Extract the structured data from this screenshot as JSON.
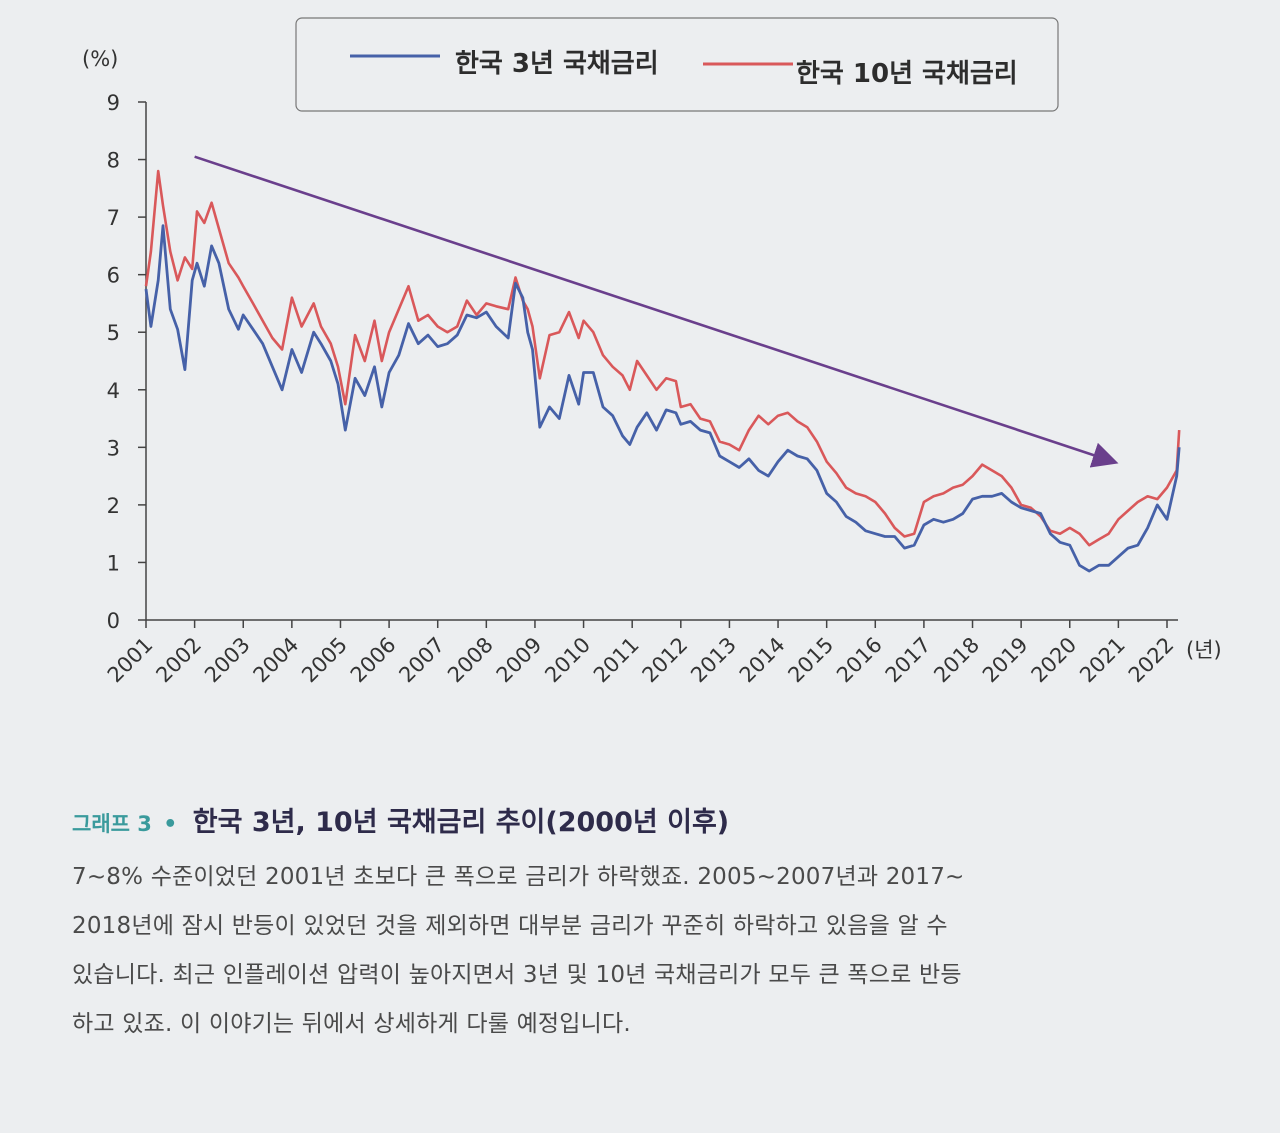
{
  "chart_data": {
    "type": "line",
    "y_unit_label": "(%)",
    "x_unit_label": "(년)",
    "ylim": [
      0,
      9
    ],
    "yticks": [
      0,
      1,
      2,
      3,
      4,
      5,
      6,
      7,
      8,
      9
    ],
    "xlim": [
      2001,
      2022.25
    ],
    "xticks": [
      2001,
      2002,
      2003,
      2004,
      2005,
      2006,
      2007,
      2008,
      2009,
      2010,
      2011,
      2012,
      2013,
      2014,
      2015,
      2016,
      2017,
      2018,
      2019,
      2020,
      2021,
      2022
    ],
    "legend": [
      "한국 3년 국채금리",
      "한국 10년 국채금리"
    ],
    "legend_position": "top",
    "colors": {
      "series_3y": "#4661a8",
      "series_10y": "#d9585a",
      "trend_arrow": "#6a3f8c"
    },
    "trend_arrow": {
      "from": [
        2002,
        8.05
      ],
      "to": [
        2020.9,
        2.75
      ]
    },
    "series": [
      {
        "name": "한국 3년 국채금리",
        "x": [
          2001.0,
          2001.1,
          2001.25,
          2001.35,
          2001.5,
          2001.65,
          2001.8,
          2001.95,
          2002.05,
          2002.2,
          2002.35,
          2002.5,
          2002.7,
          2002.9,
          2003.0,
          2003.2,
          2003.4,
          2003.6,
          2003.8,
          2004.0,
          2004.2,
          2004.45,
          2004.6,
          2004.8,
          2004.95,
          2005.1,
          2005.3,
          2005.5,
          2005.7,
          2005.85,
          2006.0,
          2006.2,
          2006.4,
          2006.6,
          2006.8,
          2007.0,
          2007.2,
          2007.4,
          2007.6,
          2007.8,
          2008.0,
          2008.2,
          2008.45,
          2008.6,
          2008.75,
          2008.85,
          2008.95,
          2009.1,
          2009.3,
          2009.5,
          2009.7,
          2009.9,
          2010.0,
          2010.2,
          2010.4,
          2010.6,
          2010.8,
          2010.95,
          2011.1,
          2011.3,
          2011.5,
          2011.7,
          2011.9,
          2012.0,
          2012.2,
          2012.4,
          2012.6,
          2012.8,
          2013.0,
          2013.2,
          2013.4,
          2013.6,
          2013.8,
          2014.0,
          2014.2,
          2014.4,
          2014.6,
          2014.8,
          2015.0,
          2015.2,
          2015.4,
          2015.6,
          2015.8,
          2016.0,
          2016.2,
          2016.4,
          2016.6,
          2016.8,
          2017.0,
          2017.2,
          2017.4,
          2017.6,
          2017.8,
          2018.0,
          2018.2,
          2018.4,
          2018.6,
          2018.8,
          2019.0,
          2019.2,
          2019.4,
          2019.6,
          2019.8,
          2020.0,
          2020.2,
          2020.4,
          2020.6,
          2020.8,
          2021.0,
          2021.2,
          2021.4,
          2021.6,
          2021.8,
          2022.0,
          2022.2,
          2022.25
        ],
        "y": [
          5.75,
          5.1,
          5.9,
          6.85,
          5.4,
          5.05,
          4.35,
          5.9,
          6.2,
          5.8,
          6.5,
          6.2,
          5.4,
          5.05,
          5.3,
          5.05,
          4.8,
          4.4,
          4.0,
          4.7,
          4.3,
          5.0,
          4.8,
          4.5,
          4.1,
          3.3,
          4.2,
          3.9,
          4.4,
          3.7,
          4.3,
          4.6,
          5.15,
          4.8,
          4.95,
          4.75,
          4.8,
          4.95,
          5.3,
          5.25,
          5.35,
          5.1,
          4.9,
          5.85,
          5.6,
          5.0,
          4.7,
          3.35,
          3.7,
          3.5,
          4.25,
          3.75,
          4.3,
          4.3,
          3.7,
          3.55,
          3.2,
          3.05,
          3.35,
          3.6,
          3.3,
          3.65,
          3.6,
          3.4,
          3.45,
          3.3,
          3.25,
          2.85,
          2.75,
          2.65,
          2.8,
          2.6,
          2.5,
          2.75,
          2.95,
          2.85,
          2.8,
          2.6,
          2.2,
          2.05,
          1.8,
          1.7,
          1.55,
          1.5,
          1.45,
          1.45,
          1.25,
          1.3,
          1.65,
          1.75,
          1.7,
          1.75,
          1.85,
          2.1,
          2.15,
          2.15,
          2.2,
          2.05,
          1.95,
          1.9,
          1.85,
          1.5,
          1.35,
          1.3,
          0.95,
          0.85,
          0.95,
          0.95,
          1.1,
          1.25,
          1.3,
          1.6,
          2.0,
          1.75,
          2.5,
          3.0
        ]
      },
      {
        "name": "한국 10년 국채금리",
        "x": [
          2001.0,
          2001.1,
          2001.25,
          2001.35,
          2001.5,
          2001.65,
          2001.8,
          2001.95,
          2002.05,
          2002.2,
          2002.35,
          2002.5,
          2002.7,
          2002.9,
          2003.0,
          2003.2,
          2003.4,
          2003.6,
          2003.8,
          2004.0,
          2004.2,
          2004.45,
          2004.6,
          2004.8,
          2004.95,
          2005.1,
          2005.3,
          2005.5,
          2005.7,
          2005.85,
          2006.0,
          2006.2,
          2006.4,
          2006.6,
          2006.8,
          2007.0,
          2007.2,
          2007.4,
          2007.6,
          2007.8,
          2008.0,
          2008.2,
          2008.45,
          2008.6,
          2008.75,
          2008.85,
          2008.95,
          2009.1,
          2009.3,
          2009.5,
          2009.7,
          2009.9,
          2010.0,
          2010.2,
          2010.4,
          2010.6,
          2010.8,
          2010.95,
          2011.1,
          2011.3,
          2011.5,
          2011.7,
          2011.9,
          2012.0,
          2012.2,
          2012.4,
          2012.6,
          2012.8,
          2013.0,
          2013.2,
          2013.4,
          2013.6,
          2013.8,
          2014.0,
          2014.2,
          2014.4,
          2014.6,
          2014.8,
          2015.0,
          2015.2,
          2015.4,
          2015.6,
          2015.8,
          2016.0,
          2016.2,
          2016.4,
          2016.6,
          2016.8,
          2017.0,
          2017.2,
          2017.4,
          2017.6,
          2017.8,
          2018.0,
          2018.2,
          2018.4,
          2018.6,
          2018.8,
          2019.0,
          2019.2,
          2019.4,
          2019.6,
          2019.8,
          2020.0,
          2020.2,
          2020.4,
          2020.6,
          2020.8,
          2021.0,
          2021.2,
          2021.4,
          2021.6,
          2021.8,
          2022.0,
          2022.2,
          2022.25
        ],
        "y": [
          5.8,
          6.4,
          7.8,
          7.2,
          6.4,
          5.9,
          6.3,
          6.1,
          7.1,
          6.9,
          7.25,
          6.8,
          6.2,
          5.95,
          5.8,
          5.5,
          5.2,
          4.9,
          4.7,
          5.6,
          5.1,
          5.5,
          5.1,
          4.8,
          4.4,
          3.75,
          4.95,
          4.5,
          5.2,
          4.5,
          5.0,
          5.4,
          5.8,
          5.2,
          5.3,
          5.1,
          5.0,
          5.1,
          5.55,
          5.3,
          5.5,
          5.45,
          5.4,
          5.95,
          5.55,
          5.4,
          5.1,
          4.2,
          4.95,
          5.0,
          5.35,
          4.9,
          5.2,
          5.0,
          4.6,
          4.4,
          4.25,
          4.0,
          4.5,
          4.25,
          4.0,
          4.2,
          4.15,
          3.7,
          3.75,
          3.5,
          3.45,
          3.1,
          3.05,
          2.95,
          3.3,
          3.55,
          3.4,
          3.55,
          3.6,
          3.45,
          3.35,
          3.1,
          2.75,
          2.55,
          2.3,
          2.2,
          2.15,
          2.05,
          1.85,
          1.6,
          1.45,
          1.5,
          2.05,
          2.15,
          2.2,
          2.3,
          2.35,
          2.5,
          2.7,
          2.6,
          2.5,
          2.3,
          2.0,
          1.95,
          1.8,
          1.55,
          1.5,
          1.6,
          1.5,
          1.3,
          1.4,
          1.5,
          1.75,
          1.9,
          2.05,
          2.15,
          2.1,
          2.3,
          2.6,
          3.3
        ]
      }
    ]
  },
  "caption": {
    "label": "그래프 3",
    "bullet": "•",
    "title": "한국 3년, 10년 국채금리 추이(2000년 이후)",
    "paragraph_lines": [
      "7~8% 수준이었던 2001년 초보다 큰 폭으로 금리가 하락했죠. 2005~2007년과 2017~",
      "2018년에 잠시 반등이 있었던 것을 제외하면 대부분 금리가 꾸준히 하락하고 있음을 알 수",
      "있습니다. 최근 인플레이션 압력이 높아지면서 3년 및 10년 국채금리가 모두 큰 폭으로 반등",
      "하고 있죠. 이 이야기는 뒤에서 상세하게 다룰 예정입니다."
    ]
  }
}
